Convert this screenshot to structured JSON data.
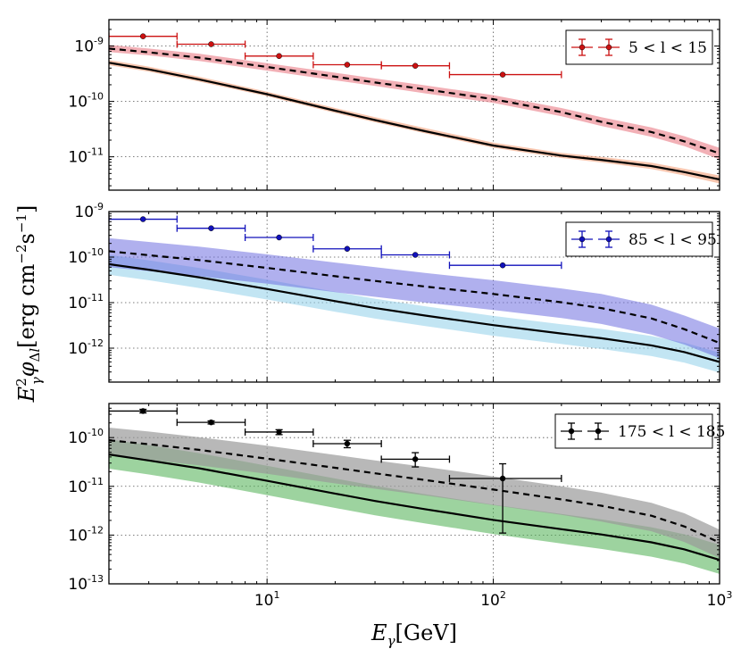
{
  "figure": {
    "ylabel": "E_γ^2 φ_Δl [erg cm^-2 s^-1]",
    "xlabel": "E_γ [GeV]",
    "xlabel_main": "E",
    "xlabel_sub": "γ",
    "xlabel_unit": "[GeV]"
  },
  "chart_data": [
    {
      "type": "line",
      "legend": "5 < l < 15",
      "legend_position": "top-right",
      "xscale": "log",
      "yscale": "log",
      "xlim": [
        2,
        1000
      ],
      "ylim": [
        2.5e-12,
        3e-09
      ],
      "xticks": [
        {
          "v": 10,
          "base": "10",
          "exp": "1"
        },
        {
          "v": 100,
          "base": "10",
          "exp": "2"
        },
        {
          "v": 1000,
          "base": "10",
          "exp": "3"
        }
      ],
      "yticks": [
        {
          "v": 1e-09,
          "base": "10",
          "exp": "-9"
        },
        {
          "v": 1e-10,
          "base": "10",
          "exp": "-10"
        },
        {
          "v": 1e-11,
          "base": "10",
          "exp": "-11"
        }
      ],
      "grid": true,
      "data_points": {
        "color": "#cc1111",
        "x": [
          2.83,
          5.66,
          11.3,
          22.6,
          45.2,
          110
        ],
        "y": [
          1.5e-09,
          1.08e-09,
          6.6e-10,
          4.6e-10,
          4.4e-10,
          3.05e-10
        ],
        "xerr_low": [
          2.0,
          4.0,
          8.0,
          16.0,
          32.0,
          64.0
        ],
        "xerr_high": [
          4.0,
          8.0,
          16.0,
          32.0,
          64.0,
          200.0
        ]
      },
      "dashed_model": {
        "x": [
          2,
          3,
          5,
          10,
          20,
          30,
          50,
          100,
          200,
          300,
          500,
          700,
          1000
        ],
        "y": [
          9e-10,
          7.7e-10,
          6.2e-10,
          4.2e-10,
          2.8e-10,
          2.2e-10,
          1.65e-10,
          1.1e-10,
          6.4e-11,
          4.3e-11,
          2.8e-11,
          1.9e-11,
          1.15e-11
        ]
      },
      "dashed_band": {
        "color": "#e8707a",
        "alpha": 0.55,
        "low": [
          7.8e-10,
          6.8e-10,
          5.4e-10,
          3.6e-10,
          2.4e-10,
          1.9e-10,
          1.4e-10,
          9.4e-11,
          5.4e-11,
          3.6e-11,
          2.3e-11,
          1.55e-11,
          9e-12
        ],
        "high": [
          1.05e-09,
          9e-10,
          7.3e-10,
          4.9e-10,
          3.3e-10,
          2.6e-10,
          1.95e-10,
          1.3e-10,
          7.6e-11,
          5.2e-11,
          3.4e-11,
          2.35e-11,
          1.45e-11
        ]
      },
      "solid_model": {
        "x": [
          2,
          3,
          5,
          10,
          20,
          30,
          50,
          100,
          200,
          300,
          500,
          700,
          1000
        ],
        "y": [
          5e-10,
          3.8e-10,
          2.5e-10,
          1.35e-10,
          6.8e-11,
          4.6e-11,
          2.9e-11,
          1.6e-11,
          1.05e-11,
          8.8e-12,
          6.8e-12,
          5.3e-12,
          3.9e-12
        ]
      },
      "solid_band": {
        "color": "#f4a07a",
        "alpha": 0.6,
        "low": [
          4.5e-10,
          3.45e-10,
          2.28e-10,
          1.24e-10,
          6.2e-11,
          4.2e-11,
          2.65e-11,
          1.46e-11,
          9.5e-12,
          7.9e-12,
          6e-12,
          4.6e-12,
          3.3e-12
        ],
        "high": [
          5.6e-10,
          4.25e-10,
          2.8e-10,
          1.5e-10,
          7.6e-11,
          5.2e-11,
          3.3e-11,
          1.8e-11,
          1.18e-11,
          1e-11,
          7.8e-12,
          6.1e-12,
          4.6e-12
        ]
      }
    },
    {
      "type": "line",
      "legend": "85 < l < 95",
      "legend_position": "top-right",
      "xscale": "log",
      "yscale": "log",
      "xlim": [
        2,
        1000
      ],
      "ylim": [
        1.8e-13,
        1e-09
      ],
      "xticks": [
        {
          "v": 10,
          "base": "10",
          "exp": "1"
        },
        {
          "v": 100,
          "base": "10",
          "exp": "2"
        },
        {
          "v": 1000,
          "base": "10",
          "exp": "3"
        }
      ],
      "yticks": [
        {
          "v": 1e-09,
          "base": "10",
          "exp": "-9"
        },
        {
          "v": 1e-10,
          "base": "10",
          "exp": "-10"
        },
        {
          "v": 1e-11,
          "base": "10",
          "exp": "-11"
        },
        {
          "v": 1e-12,
          "base": "10",
          "exp": "-12"
        }
      ],
      "grid": true,
      "data_points": {
        "color": "#1111bb",
        "x": [
          2.83,
          5.66,
          11.3,
          22.6,
          45.2,
          110
        ],
        "y": [
          6.8e-10,
          4.3e-10,
          2.7e-10,
          1.52e-10,
          1.12e-10,
          6.6e-11
        ],
        "xerr_low": [
          2.0,
          4.0,
          8.0,
          16.0,
          32.0,
          64.0
        ],
        "xerr_high": [
          4.0,
          8.0,
          16.0,
          32.0,
          64.0,
          200.0
        ]
      },
      "dashed_model": {
        "x": [
          2,
          3,
          5,
          10,
          20,
          30,
          50,
          100,
          200,
          300,
          500,
          700,
          1000
        ],
        "y": [
          1.35e-10,
          1.1e-10,
          8.6e-11,
          5.8e-11,
          3.8e-11,
          3e-11,
          2.25e-11,
          1.55e-11,
          1.02e-11,
          7.6e-12,
          4.5e-12,
          2.6e-12,
          1.3e-12
        ]
      },
      "dashed_band": {
        "color": "#6f6fe0",
        "alpha": 0.55,
        "low": [
          6e-11,
          4.9e-11,
          3.8e-11,
          2.6e-11,
          1.7e-11,
          1.34e-11,
          1e-11,
          6.9e-12,
          4.6e-12,
          3.4e-12,
          2e-12,
          1.2e-12,
          6e-13
        ],
        "high": [
          2.6e-10,
          2.15e-10,
          1.7e-10,
          1.15e-10,
          7.6e-11,
          6e-11,
          4.5e-11,
          3.1e-11,
          2.05e-11,
          1.55e-11,
          9e-12,
          5.2e-12,
          2.7e-12
        ]
      },
      "solid_model": {
        "x": [
          2,
          3,
          5,
          10,
          20,
          30,
          50,
          100,
          200,
          300,
          500,
          700,
          1000
        ],
        "y": [
          7e-11,
          5.3e-11,
          3.6e-11,
          2e-11,
          1.08e-11,
          7.6e-12,
          5.2e-12,
          3.2e-12,
          2.1e-12,
          1.65e-12,
          1.15e-12,
          8.2e-13,
          5e-13
        ]
      },
      "solid_band": {
        "color": "#8fd0ea",
        "alpha": 0.55,
        "low": [
          4.1e-11,
          3.1e-11,
          2.1e-11,
          1.17e-11,
          6.3e-12,
          4.45e-12,
          3.05e-12,
          1.87e-12,
          1.23e-12,
          9.6e-13,
          6.7e-13,
          4.8e-13,
          2.9e-13
        ],
        "high": [
          1.12e-10,
          8.5e-11,
          5.8e-11,
          3.2e-11,
          1.73e-11,
          1.22e-11,
          8.3e-12,
          5.1e-12,
          3.35e-12,
          2.65e-12,
          1.85e-12,
          1.32e-12,
          8e-13
        ]
      }
    },
    {
      "type": "line",
      "legend": "175 < l < 185",
      "legend_position": "top-right",
      "xscale": "log",
      "yscale": "log",
      "xlim": [
        2,
        1000
      ],
      "ylim": [
        1e-13,
        5e-10
      ],
      "xticks": [
        {
          "v": 10,
          "base": "10",
          "exp": "1"
        },
        {
          "v": 100,
          "base": "10",
          "exp": "2"
        },
        {
          "v": 1000,
          "base": "10",
          "exp": "3"
        }
      ],
      "yticks": [
        {
          "v": 1e-10,
          "base": "10",
          "exp": "-10"
        },
        {
          "v": 1e-11,
          "base": "10",
          "exp": "-11"
        },
        {
          "v": 1e-12,
          "base": "10",
          "exp": "-12"
        },
        {
          "v": 1e-13,
          "base": "10",
          "exp": "-13"
        }
      ],
      "grid": true,
      "data_points": {
        "color": "#000000",
        "x": [
          2.83,
          5.66,
          11.3,
          22.6,
          45.2,
          110
        ],
        "y": [
          3.5e-10,
          2.05e-10,
          1.3e-10,
          7.5e-11,
          3.6e-11,
          1.45e-11
        ],
        "xerr_low": [
          2.0,
          4.0,
          8.0,
          16.0,
          32.0,
          64.0
        ],
        "xerr_high": [
          4.0,
          8.0,
          16.0,
          32.0,
          64.0,
          200.0
        ],
        "yerr_low": [
          3.2e-10,
          1.9e-10,
          1.15e-10,
          6.2e-11,
          2.5e-11,
          1.1e-12
        ],
        "yerr_high": [
          3.8e-10,
          2.2e-10,
          1.45e-10,
          8.8e-11,
          4.9e-11,
          2.9e-11
        ]
      },
      "dashed_model": {
        "x": [
          2,
          3,
          5,
          10,
          20,
          30,
          50,
          100,
          200,
          300,
          500,
          700,
          1000
        ],
        "y": [
          8.8e-11,
          7.3e-11,
          5.6e-11,
          3.7e-11,
          2.4e-11,
          1.85e-11,
          1.35e-11,
          8.6e-12,
          5.4e-12,
          4e-12,
          2.5e-12,
          1.5e-12,
          7e-13
        ]
      },
      "dashed_band": {
        "color": "#9a9a9a",
        "alpha": 0.7,
        "low": [
          4.3e-11,
          3.5e-11,
          2.7e-11,
          1.8e-11,
          1.15e-11,
          8.9e-12,
          6.5e-12,
          4.1e-12,
          2.6e-12,
          1.9e-12,
          1.2e-12,
          7.2e-13,
          3.4e-13
        ],
        "high": [
          1.6e-10,
          1.33e-10,
          1.02e-10,
          6.8e-11,
          4.4e-11,
          3.4e-11,
          2.5e-11,
          1.6e-11,
          1e-11,
          7.4e-12,
          4.6e-12,
          2.8e-12,
          1.3e-12
        ]
      },
      "solid_model": {
        "x": [
          2,
          3,
          5,
          10,
          20,
          30,
          50,
          100,
          200,
          300,
          500,
          700,
          1000
        ],
        "y": [
          4.5e-11,
          3.4e-11,
          2.35e-11,
          1.3e-11,
          7.1e-12,
          5e-12,
          3.4e-12,
          2.05e-12,
          1.32e-12,
          1.03e-12,
          7.1e-13,
          5.1e-13,
          3.1e-13
        ]
      },
      "solid_band": {
        "color": "#4caf50",
        "alpha": 0.55,
        "low": [
          2.3e-11,
          1.75e-11,
          1.2e-11,
          6.6e-12,
          3.6e-12,
          2.55e-12,
          1.73e-12,
          1.05e-12,
          6.7e-13,
          5.2e-13,
          3.6e-13,
          2.6e-13,
          1.6e-13
        ],
        "high": [
          9.2e-11,
          7e-11,
          4.8e-11,
          2.65e-11,
          1.45e-11,
          1.02e-11,
          6.9e-12,
          4.2e-12,
          2.7e-12,
          2.1e-12,
          1.45e-12,
          1.04e-12,
          6.3e-13
        ]
      }
    }
  ]
}
